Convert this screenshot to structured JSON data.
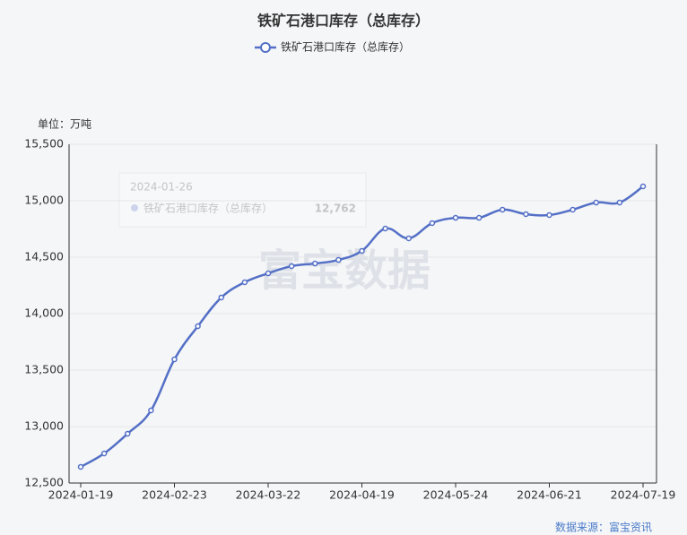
{
  "chart_data": {
    "type": "line",
    "title": "铁矿石港口库存（总库存）",
    "unit_label": "单位：万吨",
    "categories": [
      "2024-01-19",
      null,
      null,
      null,
      "2024-02-23",
      null,
      null,
      null,
      "2024-03-22",
      null,
      null,
      null,
      "2024-04-19",
      null,
      null,
      null,
      "2024-05-24",
      null,
      null,
      null,
      "2024-06-21",
      null,
      null,
      null,
      "2024-07-19"
    ],
    "series": [
      {
        "name": "铁矿石港口库存（总库存）",
        "color": "#5470c6",
        "values": [
          12643,
          12762,
          12937,
          13143,
          13595,
          13889,
          14143,
          14278,
          14357,
          14421,
          14444,
          14476,
          14556,
          14754,
          14667,
          14802,
          14849,
          14849,
          14921,
          14881,
          14873,
          14921,
          14984,
          14984,
          15127
        ]
      }
    ],
    "ylim": [
      12500,
      15500
    ],
    "yticks": [
      {
        "value": 12500,
        "label": "12,500"
      },
      {
        "value": 13000,
        "label": "13,000"
      },
      {
        "value": 13500,
        "label": "13,500"
      },
      {
        "value": 14000,
        "label": "14,000"
      },
      {
        "value": 14500,
        "label": "14,500"
      },
      {
        "value": 15000,
        "label": "15,000"
      },
      {
        "value": 15500,
        "label": "15,500"
      }
    ],
    "grid": true,
    "tooltip": {
      "date": "2024-01-26",
      "series": "铁矿石港口库存（总库存）",
      "value": 12762,
      "value_label": "12,762"
    },
    "watermark": "富宝数据",
    "source": "数据来源：富宝资讯"
  }
}
